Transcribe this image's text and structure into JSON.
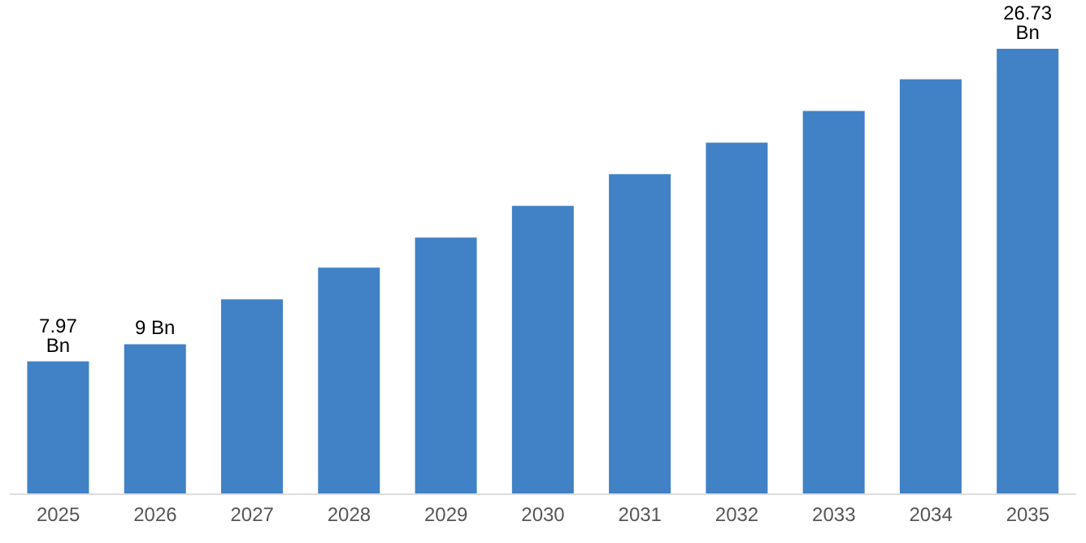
{
  "chart_data": {
    "type": "bar",
    "categories": [
      "2025",
      "2026",
      "2027",
      "2028",
      "2029",
      "2030",
      "2031",
      "2032",
      "2033",
      "2034",
      "2035"
    ],
    "values": [
      7.97,
      9,
      11.7,
      13.6,
      15.4,
      17.3,
      19.2,
      21.1,
      23.0,
      24.9,
      26.73
    ],
    "value_labels": [
      "7.97 Bn",
      "9 Bn",
      null,
      null,
      null,
      null,
      null,
      null,
      null,
      null,
      "26.73 Bn"
    ],
    "color": "#4181c6",
    "grid": false,
    "legend": false
  }
}
